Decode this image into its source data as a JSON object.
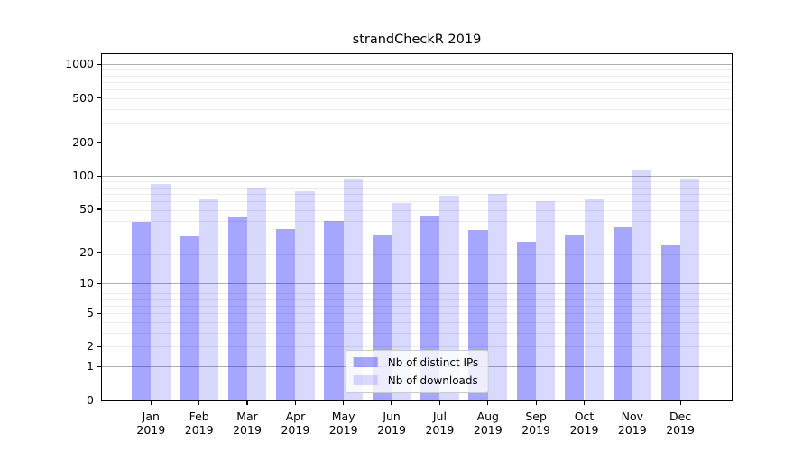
{
  "title": "strandCheckR 2019",
  "colors": {
    "ips_bar": "rgba(0,0,255,0.35)",
    "downloads_bar": "rgba(0,0,255,0.15)",
    "grid_major": "#b0b0b0",
    "grid_minor": "#ececec",
    "spine": "#000000"
  },
  "chart_data": {
    "type": "bar",
    "title": "strandCheckR 2019",
    "categories": [
      "Jan 2019",
      "Feb 2019",
      "Mar 2019",
      "Apr 2019",
      "May 2019",
      "Jun 2019",
      "Jul 2019",
      "Aug 2019",
      "Sep 2019",
      "Oct 2019",
      "Nov 2019",
      "Dec 2019"
    ],
    "series": [
      {
        "name": "Nb of distinct IPs",
        "values": [
          38,
          28,
          42,
          33,
          39,
          29,
          43,
          32,
          25,
          29,
          34,
          23
        ]
      },
      {
        "name": "Nb of downloads",
        "values": [
          84,
          61,
          78,
          72,
          92,
          57,
          66,
          69,
          59,
          61,
          112,
          95
        ]
      }
    ],
    "yscale": "log1p",
    "yticks": [
      1000,
      500,
      200,
      100,
      50,
      20,
      10,
      5,
      2,
      1,
      0
    ],
    "grid_major_at": [
      1,
      10,
      100,
      1000
    ],
    "grid_minor_at": [
      3,
      4,
      5,
      6,
      7,
      8,
      9,
      20,
      30,
      40,
      50,
      60,
      70,
      80,
      90,
      200,
      300,
      400,
      500,
      600,
      700,
      800,
      900
    ],
    "ylim": [
      0,
      1250
    ],
    "grid": true,
    "legend_position": "lower center"
  }
}
